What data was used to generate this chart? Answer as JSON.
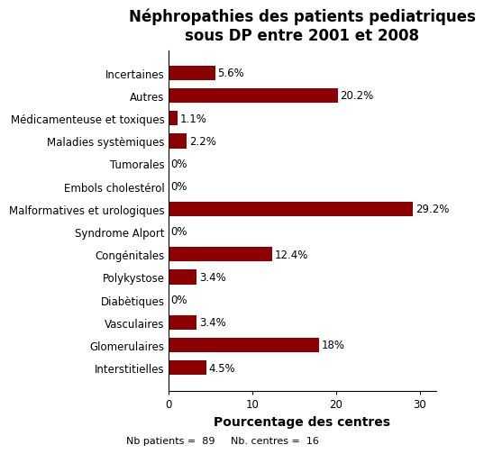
{
  "title": "Néphropathies des patients pediatriques\nsous DP entre 2001 et 2008",
  "categories": [
    "Interstitielles",
    "Glomerulaires",
    "Vasculaires",
    "Diabètiques",
    "Polykystose",
    "Congénitales",
    "Syndrome Alport",
    "Malformatives et urologiques",
    "Embols cholestérol",
    "Tumorales",
    "Maladies systèmiques",
    "Médicamenteuse et toxiques",
    "Autres",
    "Incertaines"
  ],
  "values": [
    4.5,
    18.0,
    3.4,
    0.0,
    3.4,
    12.4,
    0.0,
    29.2,
    0.0,
    0.0,
    2.2,
    1.1,
    20.2,
    5.6
  ],
  "labels": [
    "4.5%",
    "18%",
    "3.4%",
    "0%",
    "3.4%",
    "12.4%",
    "0%",
    "29.2%",
    "0%",
    "0%",
    "2.2%",
    "1.1%",
    "20.2%",
    "5.6%"
  ],
  "bar_color": "#8B0000",
  "xlabel": "Pourcentage des centres",
  "xlim": [
    0,
    32
  ],
  "xticks": [
    0,
    10,
    20,
    30
  ],
  "footnote": "Nb patients =  89     Nb. centres =  16",
  "background_color": "#ffffff",
  "title_fontsize": 12,
  "label_fontsize": 8.5,
  "tick_fontsize": 8.5,
  "xlabel_fontsize": 10,
  "footnote_fontsize": 8
}
